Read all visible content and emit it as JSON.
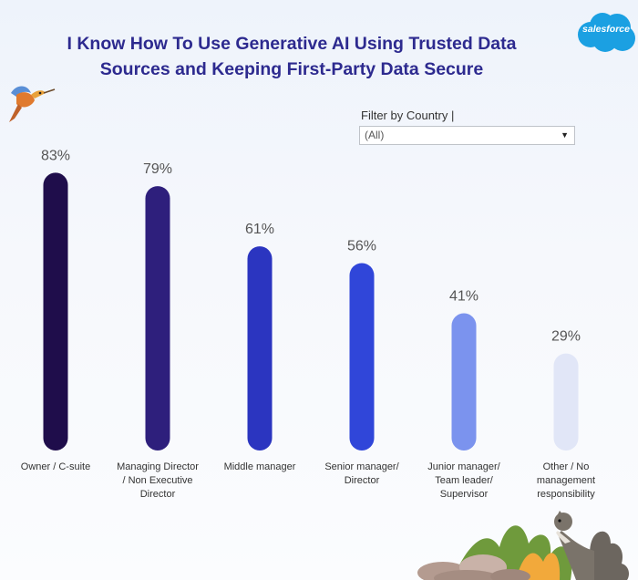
{
  "header": {
    "title_line1": "I Know How To Use Generative AI Using Trusted Data",
    "title_line2": "Sources and Keeping First-Party Data Secure",
    "logo_text": "salesforce",
    "logo_color": "#1ba0e2"
  },
  "filter": {
    "label": "Filter by Country |",
    "selected": "(All)"
  },
  "chart_data": {
    "type": "bar",
    "categories": [
      [
        "Owner / C-suite"
      ],
      [
        "Managing Director",
        "/ Non Executive",
        "Director"
      ],
      [
        "Middle manager"
      ],
      [
        "Senior manager/",
        "Director"
      ],
      [
        "Junior manager/",
        "Team leader/",
        "Supervisor"
      ],
      [
        "Other / No",
        "management",
        "responsibility"
      ]
    ],
    "values": [
      83,
      79,
      61,
      56,
      41,
      29
    ],
    "value_labels": [
      "83%",
      "79%",
      "61%",
      "56%",
      "41%",
      "29%"
    ],
    "colors": [
      "#1f0d4b",
      "#2e1f7c",
      "#2b35c0",
      "#3046d9",
      "#7b93ee",
      "#e1e6f7"
    ],
    "ylim": [
      0,
      100
    ],
    "grid": false,
    "legend": "none"
  }
}
